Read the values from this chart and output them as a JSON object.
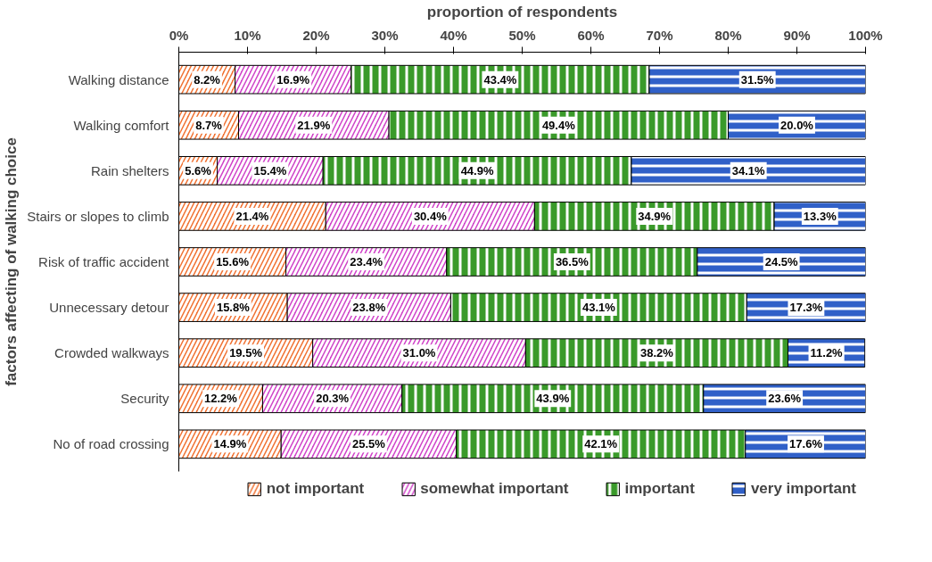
{
  "chart_data": {
    "type": "bar",
    "orientation": "horizontal",
    "stacked": true,
    "xlabel": "proportion of respondents",
    "ylabel": "factors affecting of walking choice",
    "categories": [
      "Walking distance",
      "Walking comfort",
      "Rain shelters",
      "Stairs or slopes to climb",
      "Risk of traffic accident",
      "Unnecessary detour",
      "Crowded walkways",
      "Security",
      "No of road crossing"
    ],
    "xlim": [
      0,
      100
    ],
    "xticks": [
      {
        "value": 0,
        "label": "0%"
      },
      {
        "value": 10,
        "label": "10%"
      },
      {
        "value": 20,
        "label": "20%"
      },
      {
        "value": 30,
        "label": "30%"
      },
      {
        "value": 40,
        "label": "40%"
      },
      {
        "value": 50,
        "label": "50%"
      },
      {
        "value": 60,
        "label": "60%"
      },
      {
        "value": 70,
        "label": "70%"
      },
      {
        "value": 80,
        "label": "80%"
      },
      {
        "value": 90,
        "label": "90%"
      },
      {
        "value": 100,
        "label": "100%"
      }
    ],
    "legend": "bottom",
    "grid": false,
    "series": [
      {
        "name": "not important",
        "color": "#f07030",
        "values": [
          8.2,
          8.7,
          5.6,
          21.4,
          15.6,
          15.8,
          19.5,
          12.2,
          14.9
        ],
        "value_labels": [
          "8.2%",
          "8.7%",
          "5.6%",
          "21.4%",
          "15.6%",
          "15.8%",
          "19.5%",
          "12.2%",
          "14.9%"
        ]
      },
      {
        "name": "somewhat important",
        "color": "#d040c8",
        "values": [
          16.9,
          21.9,
          15.4,
          30.4,
          23.4,
          23.8,
          31.0,
          20.3,
          25.5
        ],
        "value_labels": [
          "16.9%",
          "21.9%",
          "15.4%",
          "30.4%",
          "23.4%",
          "23.8%",
          "31.0%",
          "20.3%",
          "25.5%"
        ]
      },
      {
        "name": "important",
        "color": "#3a9a2a",
        "values": [
          43.4,
          49.4,
          44.9,
          34.9,
          36.5,
          43.1,
          38.2,
          43.9,
          42.1
        ],
        "value_labels": [
          "43.4%",
          "49.4%",
          "44.9%",
          "34.9%",
          "36.5%",
          "43.1%",
          "38.2%",
          "43.9%",
          "42.1%"
        ]
      },
      {
        "name": "very important",
        "color": "#3060c8",
        "values": [
          31.5,
          20.0,
          34.1,
          13.3,
          24.5,
          17.3,
          11.2,
          23.6,
          17.6
        ],
        "value_labels": [
          "31.5%",
          "20.0%",
          "34.1%",
          "13.3%",
          "24.5%",
          "17.3%",
          "11.2%",
          "23.6%",
          "17.6%"
        ]
      }
    ]
  }
}
